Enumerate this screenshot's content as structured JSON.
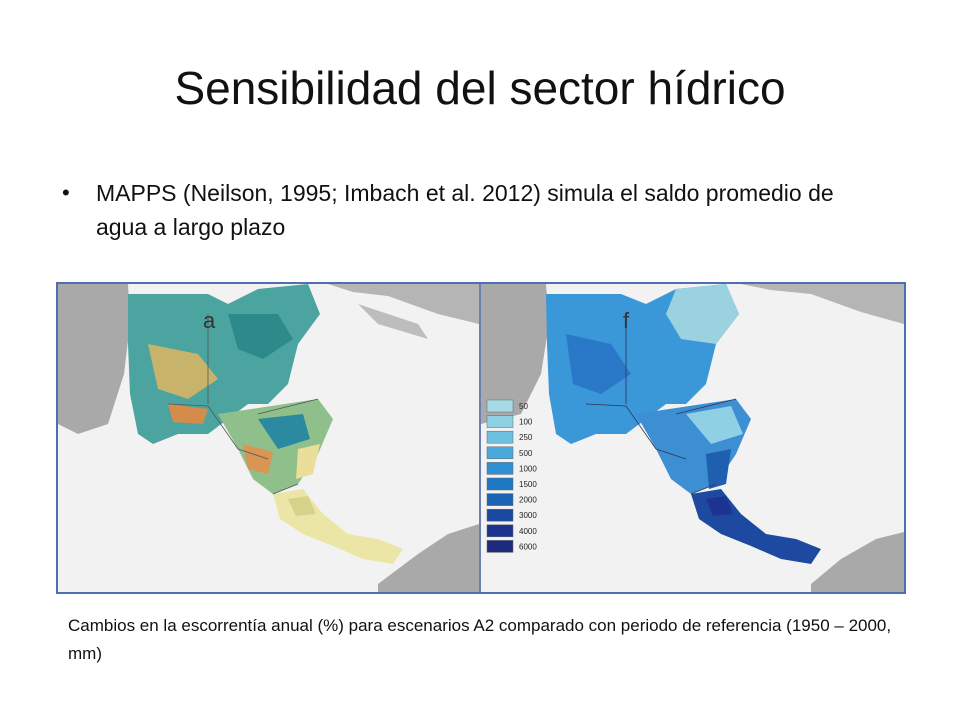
{
  "slide": {
    "title": "Sensibilidad del sector hídrico",
    "bullet_symbol": "•",
    "bullet": "MAPPS (Neilson, 1995; Imbach et al. 2012) simula el saldo promedio de agua a largo plazo",
    "caption": "Cambios en la escorrentía anual (%) para escenarios A2 comparado con periodo de referencia (1950 – 2000, mm)"
  },
  "figure": {
    "left_panel_letter": "a",
    "right_panel_letter": "f",
    "legend": [
      {
        "label": "50",
        "color": "#a6dbe6"
      },
      {
        "label": "100",
        "color": "#8fd0e4"
      },
      {
        "label": "250",
        "color": "#6cc0e0"
      },
      {
        "label": "500",
        "color": "#4aa9dc"
      },
      {
        "label": "1000",
        "color": "#2f8fd2"
      },
      {
        "label": "1500",
        "color": "#1f78c4"
      },
      {
        "label": "2000",
        "color": "#1b63b4"
      },
      {
        "label": "3000",
        "color": "#1a4aa0"
      },
      {
        "label": "4000",
        "color": "#1c3490"
      },
      {
        "label": "6000",
        "color": "#1e2a7c"
      }
    ]
  }
}
